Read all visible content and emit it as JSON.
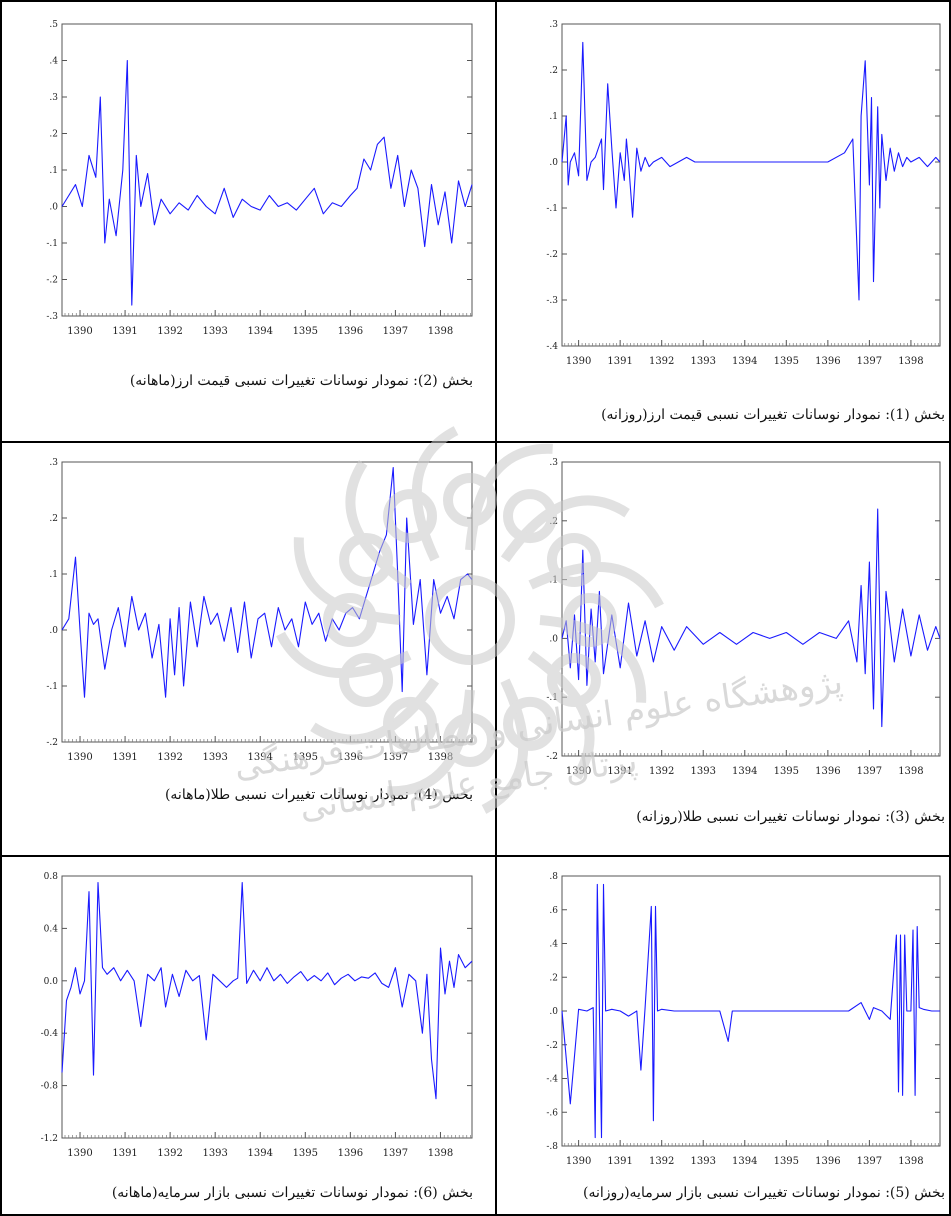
{
  "colors": {
    "series": "#1a1aff",
    "border": "#000000",
    "watermark": "#d9d9d9"
  },
  "chart_data": [
    {
      "id": "p1",
      "type": "line",
      "title": "بخش (1): نمودار نوسانات تغییرات نسبی قیمت ارز(روزانه)",
      "xlabel": "",
      "ylabel": "",
      "xlim": [
        1389.6,
        1398.7
      ],
      "ylim": [
        -0.4,
        0.3
      ],
      "yticks": [
        0.3,
        0.2,
        0.1,
        0.0,
        -0.1,
        -0.2,
        -0.3,
        -0.4
      ],
      "ytick_labels": [
        ".3",
        ".2",
        ".1",
        ".0",
        "-.1",
        "-.2",
        "-.3",
        "-.4"
      ],
      "xticks": [
        1390,
        1391,
        1392,
        1393,
        1394,
        1395,
        1396,
        1397,
        1398
      ],
      "xtick_labels": [
        "1390",
        "1391",
        "1392",
        "1393",
        "1394",
        "1395",
        "1396",
        "1397",
        "1398"
      ],
      "series": [
        {
          "x": [
            1389.6,
            1389.7,
            1389.75,
            1389.8,
            1389.9,
            1390.0,
            1390.1,
            1390.2,
            1390.3,
            1390.4,
            1390.55,
            1390.6,
            1390.7,
            1390.8,
            1390.9,
            1391.0,
            1391.1,
            1391.15,
            1391.2,
            1391.3,
            1391.4,
            1391.5,
            1391.6,
            1391.7,
            1391.8,
            1392.0,
            1392.2,
            1392.4,
            1392.6,
            1392.8,
            1393.0,
            1393.3,
            1393.6,
            1394.0,
            1394.4,
            1394.8,
            1395.2,
            1395.6,
            1396.0,
            1396.4,
            1396.6,
            1396.75,
            1396.8,
            1396.9,
            1397.0,
            1397.05,
            1397.1,
            1397.2,
            1397.25,
            1397.3,
            1397.4,
            1397.5,
            1397.6,
            1397.7,
            1397.8,
            1397.9,
            1398.0,
            1398.2,
            1398.4,
            1398.6,
            1398.7
          ],
          "y": [
            0.0,
            0.1,
            -0.05,
            0.0,
            0.02,
            -0.03,
            0.26,
            -0.04,
            0.0,
            0.01,
            0.05,
            -0.06,
            0.17,
            0.03,
            -0.1,
            0.02,
            -0.04,
            0.05,
            0.0,
            -0.12,
            0.03,
            -0.02,
            0.01,
            -0.01,
            0.0,
            0.01,
            -0.01,
            0.0,
            0.01,
            0.0,
            0.0,
            0.0,
            0.0,
            0.0,
            0.0,
            0.0,
            0.0,
            0.0,
            0.0,
            0.02,
            0.05,
            -0.3,
            0.1,
            0.22,
            -0.05,
            0.14,
            -0.26,
            0.12,
            -0.1,
            0.06,
            -0.04,
            0.03,
            -0.02,
            0.02,
            -0.01,
            0.01,
            0.0,
            0.01,
            -0.01,
            0.01,
            0.0
          ]
        }
      ]
    },
    {
      "id": "p2",
      "type": "line",
      "title": "بخش (2): نمودار نوسانات تغییرات نسبی قیمت ارز(ماهانه)",
      "xlabel": "",
      "ylabel": "",
      "xlim": [
        1389.6,
        1398.7
      ],
      "ylim": [
        -0.3,
        0.5
      ],
      "yticks": [
        0.5,
        0.4,
        0.3,
        0.2,
        0.1,
        0.0,
        -0.1,
        -0.2,
        -0.3
      ],
      "ytick_labels": [
        ".5",
        ".4",
        ".3",
        ".2",
        ".1",
        ".0",
        "-.1",
        "-.2",
        "-.3"
      ],
      "xticks": [
        1390,
        1391,
        1392,
        1393,
        1394,
        1395,
        1396,
        1397,
        1398
      ],
      "xtick_labels": [
        "1390",
        "1391",
        "1392",
        "1393",
        "1394",
        "1395",
        "1396",
        "1397",
        "1398"
      ],
      "series": [
        {
          "x": [
            1389.6,
            1389.75,
            1389.9,
            1390.05,
            1390.2,
            1390.35,
            1390.45,
            1390.55,
            1390.65,
            1390.8,
            1390.95,
            1391.05,
            1391.15,
            1391.25,
            1391.35,
            1391.5,
            1391.65,
            1391.8,
            1392.0,
            1392.2,
            1392.4,
            1392.6,
            1392.8,
            1393.0,
            1393.2,
            1393.4,
            1393.6,
            1393.8,
            1394.0,
            1394.2,
            1394.4,
            1394.6,
            1394.8,
            1395.0,
            1395.2,
            1395.4,
            1395.6,
            1395.8,
            1396.0,
            1396.15,
            1396.3,
            1396.45,
            1396.6,
            1396.75,
            1396.9,
            1397.05,
            1397.2,
            1397.35,
            1397.5,
            1397.65,
            1397.8,
            1397.95,
            1398.1,
            1398.25,
            1398.4,
            1398.55,
            1398.7
          ],
          "y": [
            0.0,
            0.03,
            0.06,
            0.0,
            0.14,
            0.08,
            0.3,
            -0.1,
            0.02,
            -0.08,
            0.1,
            0.4,
            -0.27,
            0.14,
            0.0,
            0.09,
            -0.05,
            0.02,
            -0.02,
            0.01,
            -0.01,
            0.03,
            0.0,
            -0.02,
            0.05,
            -0.03,
            0.02,
            0.0,
            -0.01,
            0.03,
            0.0,
            0.01,
            -0.01,
            0.02,
            0.05,
            -0.02,
            0.01,
            0.0,
            0.03,
            0.05,
            0.13,
            0.1,
            0.17,
            0.19,
            0.05,
            0.14,
            0.0,
            0.1,
            0.05,
            -0.11,
            0.06,
            -0.05,
            0.04,
            -0.1,
            0.07,
            0.0,
            0.06
          ]
        }
      ]
    },
    {
      "id": "p3",
      "type": "line",
      "title": "بخش (3): نمودار نوسانات تغییرات نسبی طلا(روزانه)",
      "xlabel": "",
      "ylabel": "",
      "xlim": [
        1389.6,
        1398.7
      ],
      "ylim": [
        -0.2,
        0.3
      ],
      "yticks": [
        0.3,
        0.2,
        0.1,
        0.0,
        -0.1,
        -0.2
      ],
      "ytick_labels": [
        ".3",
        ".2",
        ".1",
        ".0",
        "-.1",
        "-.2"
      ],
      "xticks": [
        1390,
        1391,
        1392,
        1393,
        1394,
        1395,
        1396,
        1397,
        1398
      ],
      "xtick_labels": [
        "1390",
        "1391",
        "1392",
        "1393",
        "1394",
        "1395",
        "1396",
        "1397",
        "1398"
      ],
      "series": [
        {
          "x": [
            1389.6,
            1389.7,
            1389.8,
            1389.9,
            1390.0,
            1390.1,
            1390.2,
            1390.3,
            1390.4,
            1390.5,
            1390.6,
            1390.8,
            1391.0,
            1391.2,
            1391.4,
            1391.6,
            1391.8,
            1392.0,
            1392.3,
            1392.6,
            1393.0,
            1393.4,
            1393.8,
            1394.2,
            1394.6,
            1395.0,
            1395.4,
            1395.8,
            1396.2,
            1396.5,
            1396.7,
            1396.8,
            1396.9,
            1397.0,
            1397.1,
            1397.2,
            1397.3,
            1397.4,
            1397.6,
            1397.8,
            1398.0,
            1398.2,
            1398.4,
            1398.6,
            1398.7
          ],
          "y": [
            0.0,
            0.03,
            -0.05,
            0.04,
            -0.07,
            0.15,
            -0.08,
            0.05,
            -0.04,
            0.08,
            -0.06,
            0.04,
            -0.05,
            0.06,
            -0.03,
            0.03,
            -0.04,
            0.02,
            -0.02,
            0.02,
            -0.01,
            0.01,
            -0.01,
            0.01,
            0.0,
            0.01,
            -0.01,
            0.01,
            0.0,
            0.03,
            -0.04,
            0.09,
            -0.06,
            0.13,
            -0.12,
            0.22,
            -0.15,
            0.08,
            -0.04,
            0.05,
            -0.03,
            0.04,
            -0.02,
            0.02,
            0.0
          ]
        }
      ]
    },
    {
      "id": "p4",
      "type": "line",
      "title": "بخش (4): نمودار نوسانات تغییرات نسبی طلا(ماهانه)",
      "xlabel": "",
      "ylabel": "",
      "xlim": [
        1389.6,
        1398.7
      ],
      "ylim": [
        -0.2,
        0.3
      ],
      "yticks": [
        0.3,
        0.2,
        0.1,
        0.0,
        -0.1,
        -0.2
      ],
      "ytick_labels": [
        ".3",
        ".2",
        ".1",
        ".0",
        "-.1",
        "-.2"
      ],
      "xticks": [
        1390,
        1391,
        1392,
        1393,
        1394,
        1395,
        1396,
        1397,
        1398
      ],
      "xtick_labels": [
        "1390",
        "1391",
        "1392",
        "1393",
        "1394",
        "1395",
        "1396",
        "1397",
        "1398"
      ],
      "series": [
        {
          "x": [
            1389.6,
            1389.75,
            1389.9,
            1390.0,
            1390.1,
            1390.2,
            1390.3,
            1390.4,
            1390.55,
            1390.7,
            1390.85,
            1391.0,
            1391.15,
            1391.3,
            1391.45,
            1391.6,
            1391.75,
            1391.9,
            1392.0,
            1392.1,
            1392.2,
            1392.3,
            1392.45,
            1392.6,
            1392.75,
            1392.9,
            1393.05,
            1393.2,
            1393.35,
            1393.5,
            1393.65,
            1393.8,
            1393.95,
            1394.1,
            1394.25,
            1394.4,
            1394.55,
            1394.7,
            1394.85,
            1395.0,
            1395.15,
            1395.3,
            1395.45,
            1395.6,
            1395.75,
            1395.9,
            1396.05,
            1396.2,
            1396.35,
            1396.5,
            1396.65,
            1396.8,
            1396.95,
            1397.05,
            1397.15,
            1397.25,
            1397.4,
            1397.55,
            1397.7,
            1397.85,
            1398.0,
            1398.15,
            1398.3,
            1398.45,
            1398.6,
            1398.7
          ],
          "y": [
            0.0,
            0.02,
            0.13,
            0.0,
            -0.12,
            0.03,
            0.01,
            0.02,
            -0.07,
            0.0,
            0.04,
            -0.03,
            0.06,
            0.0,
            0.03,
            -0.05,
            0.01,
            -0.12,
            0.02,
            -0.08,
            0.04,
            -0.1,
            0.05,
            -0.03,
            0.06,
            0.01,
            0.03,
            -0.02,
            0.04,
            -0.04,
            0.05,
            -0.05,
            0.02,
            0.03,
            -0.03,
            0.04,
            0.0,
            0.02,
            -0.03,
            0.05,
            0.01,
            0.03,
            -0.02,
            0.02,
            0.0,
            0.03,
            0.04,
            0.02,
            0.06,
            0.1,
            0.14,
            0.17,
            0.29,
            0.1,
            -0.11,
            0.2,
            0.01,
            0.09,
            -0.08,
            0.09,
            0.03,
            0.06,
            0.02,
            0.09,
            0.1,
            0.09
          ]
        }
      ]
    },
    {
      "id": "p5",
      "type": "line",
      "title": "بخش (5): نمودار نوسانات تغییرات نسبی بازار سرمایه(روزانه)",
      "xlabel": "",
      "ylabel": "",
      "xlim": [
        1389.6,
        1398.7
      ],
      "ylim": [
        -0.8,
        0.8
      ],
      "yticks": [
        0.8,
        0.6,
        0.4,
        0.2,
        0.0,
        -0.2,
        -0.4,
        -0.6,
        -0.8
      ],
      "ytick_labels": [
        ".8",
        ".6",
        ".4",
        ".2",
        ".0",
        "-.2",
        "-.4",
        "-.6",
        "-.8"
      ],
      "xticks": [
        1390,
        1391,
        1392,
        1393,
        1394,
        1395,
        1396,
        1397,
        1398
      ],
      "xtick_labels": [
        "1390",
        "1391",
        "1392",
        "1393",
        "1394",
        "1395",
        "1396",
        "1397",
        "1398"
      ],
      "series": [
        {
          "x": [
            1389.6,
            1389.8,
            1390.0,
            1390.2,
            1390.35,
            1390.4,
            1390.45,
            1390.55,
            1390.6,
            1390.65,
            1390.8,
            1391.0,
            1391.2,
            1391.4,
            1391.5,
            1391.6,
            1391.75,
            1391.8,
            1391.85,
            1391.9,
            1392.0,
            1392.3,
            1392.6,
            1393.0,
            1393.4,
            1393.6,
            1393.7,
            1394.0,
            1394.5,
            1395.0,
            1395.5,
            1396.0,
            1396.5,
            1396.8,
            1397.0,
            1397.1,
            1397.3,
            1397.5,
            1397.65,
            1397.7,
            1397.75,
            1397.8,
            1397.85,
            1397.9,
            1398.0,
            1398.05,
            1398.1,
            1398.15,
            1398.2,
            1398.3,
            1398.5,
            1398.7
          ],
          "y": [
            0.0,
            -0.55,
            0.01,
            0.0,
            0.02,
            -0.75,
            0.75,
            -0.75,
            0.75,
            0.0,
            0.01,
            0.0,
            -0.03,
            0.0,
            -0.35,
            0.02,
            0.62,
            -0.65,
            0.62,
            0.0,
            0.01,
            0.0,
            0.0,
            0.0,
            0.0,
            -0.18,
            0.0,
            0.0,
            0.0,
            0.0,
            0.0,
            0.0,
            0.0,
            0.05,
            -0.05,
            0.02,
            0.0,
            -0.05,
            0.45,
            -0.48,
            0.45,
            -0.5,
            0.45,
            0.0,
            0.0,
            0.48,
            -0.5,
            0.5,
            0.02,
            0.01,
            0.0,
            0.0
          ]
        }
      ]
    },
    {
      "id": "p6",
      "type": "line",
      "title": "بخش (6): نمودار نوسانات تغییرات نسبی بازار سرمایه(ماهانه)",
      "xlabel": "",
      "ylabel": "",
      "xlim": [
        1389.6,
        1398.7
      ],
      "ylim": [
        -1.2,
        0.8
      ],
      "yticks": [
        0.8,
        0.4,
        0.0,
        -0.4,
        -0.8,
        -1.2
      ],
      "ytick_labels": [
        "0.8",
        "0.4",
        "0.0",
        "-0.4",
        "-0.8",
        "-1.2"
      ],
      "xticks": [
        1390,
        1391,
        1392,
        1393,
        1394,
        1395,
        1396,
        1397,
        1398
      ],
      "xtick_labels": [
        "1390",
        "1391",
        "1392",
        "1393",
        "1394",
        "1395",
        "1396",
        "1397",
        "1398"
      ],
      "series": [
        {
          "x": [
            1389.6,
            1389.7,
            1389.8,
            1389.9,
            1390.0,
            1390.1,
            1390.2,
            1390.3,
            1390.4,
            1390.5,
            1390.6,
            1390.75,
            1390.9,
            1391.05,
            1391.2,
            1391.35,
            1391.5,
            1391.65,
            1391.8,
            1391.9,
            1392.05,
            1392.2,
            1392.35,
            1392.5,
            1392.65,
            1392.8,
            1392.95,
            1393.1,
            1393.25,
            1393.4,
            1393.5,
            1393.6,
            1393.7,
            1393.85,
            1394.0,
            1394.15,
            1394.3,
            1394.45,
            1394.6,
            1394.75,
            1394.9,
            1395.05,
            1395.2,
            1395.35,
            1395.5,
            1395.65,
            1395.8,
            1395.95,
            1396.1,
            1396.25,
            1396.4,
            1396.55,
            1396.7,
            1396.85,
            1397.0,
            1397.15,
            1397.3,
            1397.45,
            1397.6,
            1397.7,
            1397.8,
            1397.9,
            1398.0,
            1398.1,
            1398.2,
            1398.3,
            1398.4,
            1398.55,
            1398.7
          ],
          "y": [
            -0.7,
            -0.15,
            -0.05,
            0.1,
            -0.1,
            0.0,
            0.68,
            -0.72,
            0.75,
            0.1,
            0.05,
            0.1,
            0.0,
            0.08,
            0.0,
            -0.35,
            0.05,
            0.0,
            0.1,
            -0.2,
            0.05,
            -0.12,
            0.08,
            0.0,
            0.04,
            -0.45,
            0.05,
            0.0,
            -0.05,
            0.0,
            0.02,
            0.75,
            -0.02,
            0.08,
            0.0,
            0.1,
            0.0,
            0.05,
            -0.02,
            0.03,
            0.07,
            0.0,
            0.04,
            0.0,
            0.06,
            -0.03,
            0.02,
            0.05,
            0.0,
            0.03,
            0.02,
            0.06,
            -0.02,
            -0.05,
            0.1,
            -0.2,
            0.05,
            0.0,
            -0.4,
            0.05,
            -0.6,
            -0.9,
            0.25,
            -0.1,
            0.15,
            -0.05,
            0.2,
            0.1,
            0.15
          ]
        }
      ]
    }
  ],
  "captions": {
    "p1": "بخش (1): نمودار نوسانات تغییرات نسبی قیمت ارز(روزانه)",
    "p2": "بخش (2): نمودار نوسانات تغییرات نسبی قیمت ارز(ماهانه)",
    "p3": "بخش (3): نمودار نوسانات تغییرات نسبی طلا(روزانه)",
    "p4": "بخش (4): نمودار نوسانات تغییرات نسبی طلا(ماهانه)",
    "p5": "بخش (5): نمودار نوسانات تغییرات نسبی بازار سرمایه(روزانه)",
    "p6": "بخش (6): نمودار نوسانات تغییرات نسبی بازار سرمایه(ماهانه)"
  },
  "watermark": {
    "line1": "پژوهشگاه علوم انسانی و مطالعات فرهنگی",
    "line2": "پرتال جامع علوم انسانی"
  }
}
